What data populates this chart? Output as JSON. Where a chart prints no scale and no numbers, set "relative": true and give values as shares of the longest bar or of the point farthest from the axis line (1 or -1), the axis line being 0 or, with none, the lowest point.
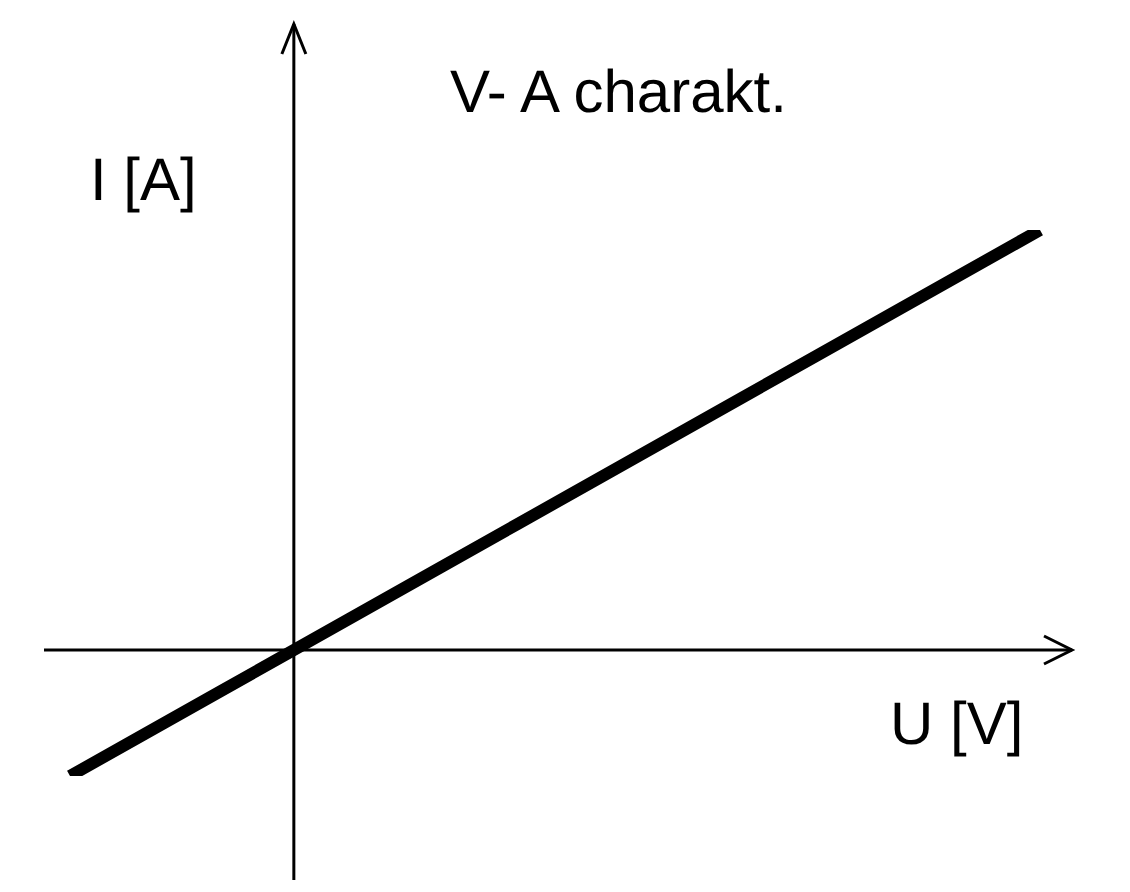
{
  "chart_data": {
    "type": "line",
    "title": "V- A charakt.",
    "xlabel": "U [V]",
    "ylabel": "I [A]",
    "relative": true,
    "categories": [
      null,
      null,
      null,
      null,
      null,
      null,
      null,
      null,
      null,
      null,
      null,
      null,
      null,
      null
    ],
    "series": [
      {
        "color": "#000000",
        "values": [
          -0.3,
          -0.2,
          -0.1,
          0,
          0.1,
          0.2,
          0.3,
          0.4,
          0.5,
          0.6,
          0.7,
          0.8,
          0.9,
          1
        ]
      }
    ],
    "marker": "none",
    "line_style": "solid",
    "grid": false,
    "legend": false
  }
}
